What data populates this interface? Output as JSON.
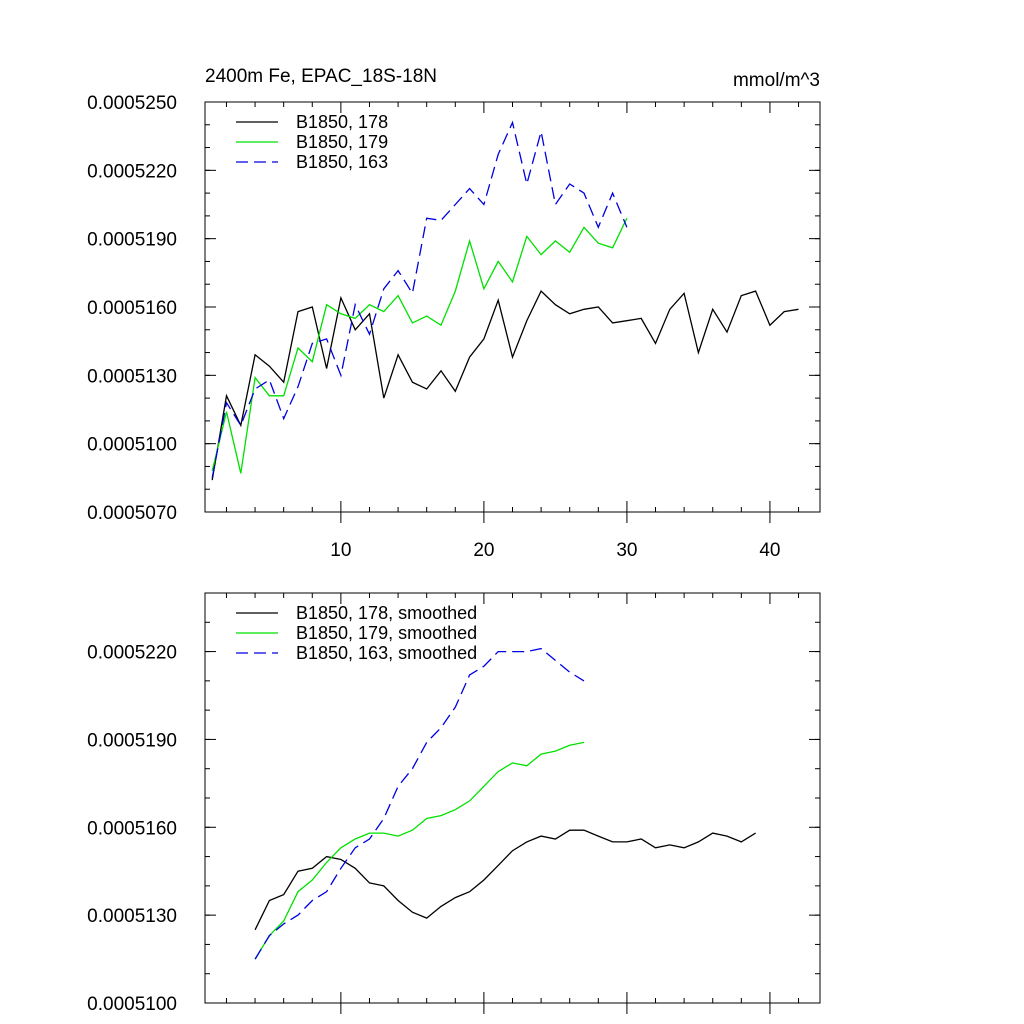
{
  "chart_data": [
    {
      "type": "line",
      "title": "2400m Fe, EPAC_18S-18N",
      "units": "mmol/m^3",
      "xlabel": "",
      "ylabel": "",
      "xlim": [
        0.5,
        43.5
      ],
      "ylim": [
        0.000507,
        0.000525
      ],
      "x_ticks": [
        10,
        20,
        30,
        40
      ],
      "x_tick_labels": [
        "10",
        "20",
        "30",
        "40"
      ],
      "y_ticks": [
        0.000507,
        0.00051,
        0.000513,
        0.000516,
        0.000519,
        0.000522,
        0.000525
      ],
      "y_tick_labels": [
        "0.0005070",
        "0.0005100",
        "0.0005130",
        "0.0005160",
        "0.0005190",
        "0.0005220",
        "0.0005250"
      ],
      "grid": false,
      "legend_position": "top-left",
      "series": [
        {
          "name": "B1850, 178",
          "color": "#000000",
          "dash": "solid",
          "x": [
            1,
            2,
            3,
            4,
            5,
            6,
            7,
            8,
            9,
            10,
            11,
            12,
            13,
            14,
            15,
            16,
            17,
            18,
            19,
            20,
            21,
            22,
            23,
            24,
            25,
            26,
            27,
            28,
            29,
            30,
            31,
            32,
            33,
            34,
            35,
            36,
            37,
            38,
            39,
            40,
            41,
            42
          ],
          "y": [
            0.0005084,
            0.0005121,
            0.0005108,
            0.0005139,
            0.0005134,
            0.0005127,
            0.0005158,
            0.000516,
            0.0005133,
            0.0005164,
            0.000515,
            0.0005157,
            0.000512,
            0.0005139,
            0.0005127,
            0.0005124,
            0.0005132,
            0.0005123,
            0.0005138,
            0.0005146,
            0.0005163,
            0.0005138,
            0.0005154,
            0.0005167,
            0.0005161,
            0.0005157,
            0.0005159,
            0.000516,
            0.0005153,
            0.0005154,
            0.0005155,
            0.0005144,
            0.0005159,
            0.0005166,
            0.000514,
            0.0005159,
            0.0005149,
            0.0005165,
            0.0005167,
            0.0005152,
            0.0005158,
            0.0005159
          ]
        },
        {
          "name": "B1850, 179",
          "color": "#00e000",
          "dash": "solid",
          "x": [
            1,
            2,
            3,
            4,
            5,
            6,
            7,
            8,
            9,
            10,
            11,
            12,
            13,
            14,
            15,
            16,
            17,
            18,
            19,
            20,
            21,
            22,
            23,
            24,
            25,
            26,
            27,
            28,
            29,
            30
          ],
          "y": [
            0.0005088,
            0.0005114,
            0.0005087,
            0.0005129,
            0.0005121,
            0.0005121,
            0.0005142,
            0.0005136,
            0.0005161,
            0.0005157,
            0.0005155,
            0.0005161,
            0.0005158,
            0.0005165,
            0.0005153,
            0.0005156,
            0.0005152,
            0.0005167,
            0.0005189,
            0.0005168,
            0.000518,
            0.0005171,
            0.0005191,
            0.0005183,
            0.0005189,
            0.0005184,
            0.0005195,
            0.0005188,
            0.0005186,
            0.0005199
          ]
        },
        {
          "name": "B1850, 163",
          "color": "#0000e0",
          "dash": "dashed",
          "x": [
            1,
            2,
            3,
            4,
            5,
            6,
            7,
            8,
            9,
            10,
            11,
            12,
            13,
            14,
            15,
            16,
            17,
            18,
            19,
            20,
            21,
            22,
            23,
            24,
            25,
            26,
            27,
            28,
            29,
            30
          ],
          "y": [
            0.0005085,
            0.0005118,
            0.0005108,
            0.0005124,
            0.0005128,
            0.0005111,
            0.0005125,
            0.0005144,
            0.0005146,
            0.000513,
            0.0005161,
            0.0005148,
            0.0005168,
            0.0005176,
            0.0005166,
            0.0005199,
            0.0005198,
            0.0005205,
            0.0005212,
            0.0005205,
            0.0005227,
            0.0005241,
            0.0005214,
            0.0005237,
            0.0005205,
            0.0005214,
            0.000521,
            0.0005195,
            0.000521,
            0.0005195
          ]
        }
      ]
    },
    {
      "type": "line",
      "title": "",
      "xlabel": "",
      "ylabel": "",
      "xlim": [
        0.5,
        43.5
      ],
      "ylim": [
        0.00051,
        0.000524
      ],
      "x_ticks": [
        10,
        20,
        30,
        40
      ],
      "x_tick_labels": [],
      "y_ticks": [
        0.00051,
        0.000513,
        0.000516,
        0.000519,
        0.000522
      ],
      "y_tick_labels": [
        "0.0005100",
        "0.0005130",
        "0.0005160",
        "0.0005190",
        "0.0005220"
      ],
      "grid": false,
      "legend_position": "top-left",
      "series": [
        {
          "name": "B1850, 178, smoothed",
          "color": "#000000",
          "dash": "solid",
          "x": [
            4,
            5,
            6,
            7,
            8,
            9,
            10,
            11,
            12,
            13,
            14,
            15,
            16,
            17,
            18,
            19,
            20,
            21,
            22,
            23,
            24,
            25,
            26,
            27,
            28,
            29,
            30,
            31,
            32,
            33,
            34,
            35,
            36,
            37,
            38,
            39
          ],
          "y": [
            0.0005125,
            0.0005135,
            0.0005137,
            0.0005145,
            0.0005146,
            0.000515,
            0.0005149,
            0.0005146,
            0.0005141,
            0.000514,
            0.0005135,
            0.0005131,
            0.0005129,
            0.0005133,
            0.0005136,
            0.0005138,
            0.0005142,
            0.0005147,
            0.0005152,
            0.0005155,
            0.0005157,
            0.0005156,
            0.0005159,
            0.0005159,
            0.0005157,
            0.0005155,
            0.0005155,
            0.0005156,
            0.0005153,
            0.0005154,
            0.0005153,
            0.0005155,
            0.0005158,
            0.0005157,
            0.0005155,
            0.0005158
          ]
        },
        {
          "name": "B1850, 179, smoothed",
          "color": "#00e000",
          "dash": "solid",
          "x": [
            4,
            5,
            6,
            7,
            8,
            9,
            10,
            11,
            12,
            13,
            14,
            15,
            16,
            17,
            18,
            19,
            20,
            21,
            22,
            23,
            24,
            25,
            26,
            27
          ],
          "y": [
            0.0005115,
            0.0005123,
            0.0005128,
            0.0005138,
            0.0005142,
            0.0005148,
            0.0005153,
            0.0005156,
            0.0005158,
            0.0005158,
            0.0005157,
            0.0005159,
            0.0005163,
            0.0005164,
            0.0005166,
            0.0005169,
            0.0005174,
            0.0005179,
            0.0005182,
            0.0005181,
            0.0005185,
            0.0005186,
            0.0005188,
            0.0005189
          ]
        },
        {
          "name": "B1850, 163, smoothed",
          "color": "#0000e0",
          "dash": "dashed",
          "x": [
            4,
            5,
            6,
            7,
            8,
            9,
            10,
            11,
            12,
            13,
            14,
            15,
            16,
            17,
            18,
            19,
            20,
            21,
            22,
            23,
            24,
            25,
            26,
            27
          ],
          "y": [
            0.0005115,
            0.0005123,
            0.0005127,
            0.000513,
            0.0005135,
            0.0005138,
            0.0005146,
            0.0005153,
            0.0005156,
            0.0005163,
            0.0005174,
            0.000518,
            0.0005189,
            0.0005194,
            0.0005201,
            0.0005212,
            0.0005215,
            0.000522,
            0.000522,
            0.000522,
            0.0005221,
            0.0005217,
            0.0005213,
            0.000521
          ]
        }
      ]
    }
  ]
}
